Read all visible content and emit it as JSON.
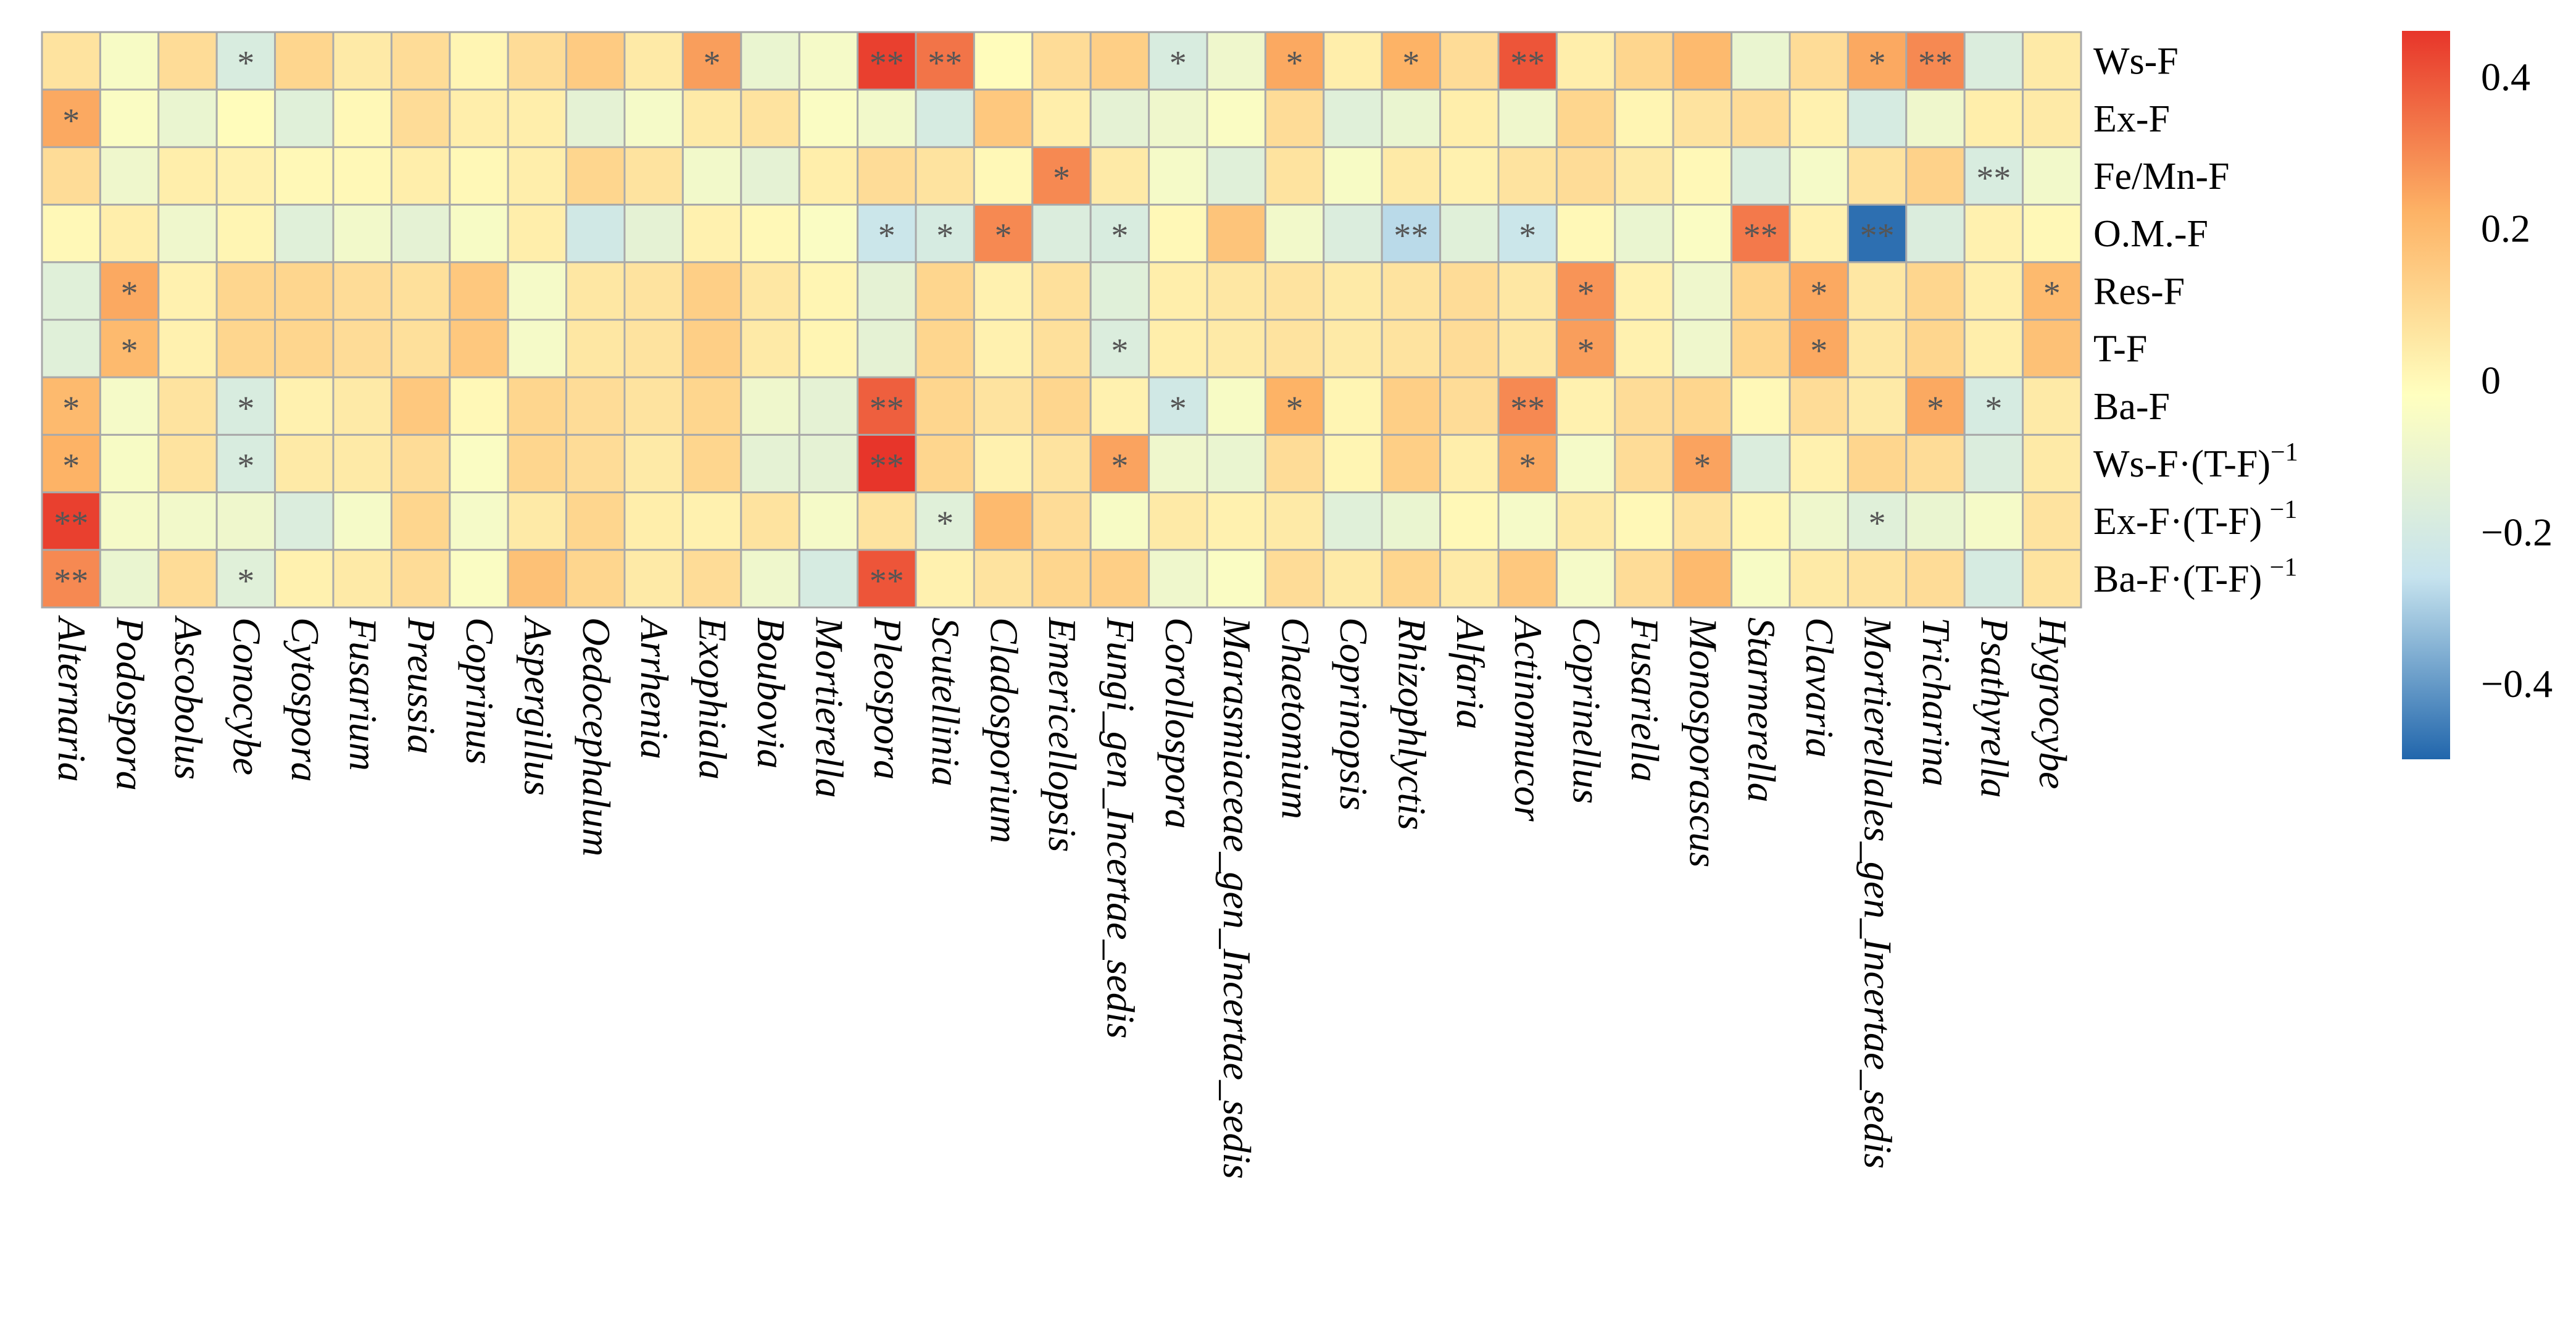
{
  "chart_data": {
    "type": "heatmap",
    "title": "",
    "rows": [
      {
        "label": "Ws-F",
        "sup": ""
      },
      {
        "label": "Ex-F",
        "sup": ""
      },
      {
        "label": "Fe/Mn-F",
        "sup": ""
      },
      {
        "label": "O.M.-F",
        "sup": ""
      },
      {
        "label": "Res-F",
        "sup": ""
      },
      {
        "label": "T-F",
        "sup": ""
      },
      {
        "label": "Ba-F",
        "sup": ""
      },
      {
        "label": "Ws-F·(T-F)",
        "sup": "−1"
      },
      {
        "label": "Ex-F·(T-F) ",
        "sup": "−1"
      },
      {
        "label": "Ba-F·(T-F) ",
        "sup": "−1"
      }
    ],
    "columns": [
      "Alternaria",
      "Podospora",
      "Ascobolus",
      "Conocybe",
      "Cytospora",
      "Fusarium",
      "Preussia",
      "Coprinus",
      "Aspergillus",
      "Oedocephalum",
      "Arrhenia",
      "Exophiala",
      "Boubovia",
      "Mortierella",
      "Pleospora",
      "Scutellinia",
      "Cladosporium",
      "Emericellopsis",
      "Fungi_gen_Incertae_sedis",
      "Corollospora",
      "Marasmiaceae_gen_Incertae_sedis",
      "Chaetomium",
      "Coprinopsis",
      "Rhizophlyctis",
      "Alfaria",
      "Actinomucor",
      "Coprinellus",
      "Fusariella",
      "Monosporascus",
      "Starmerella",
      "Clavaria",
      "Mortierellales_gen_Incertae_sedis",
      "Tricharina",
      "Psathyrella",
      "Hygrocybe"
    ],
    "values": [
      [
        0.08,
        -0.03,
        0.1,
        -0.15,
        0.12,
        0.06,
        0.1,
        0.03,
        0.1,
        0.15,
        0.06,
        0.26,
        -0.08,
        -0.04,
        0.44,
        0.34,
        0.01,
        0.1,
        0.14,
        -0.15,
        -0.06,
        0.24,
        0.05,
        0.22,
        0.1,
        0.4,
        0.05,
        0.12,
        0.2,
        -0.08,
        0.1,
        0.24,
        0.3,
        -0.14,
        0.06
      ],
      [
        0.24,
        -0.02,
        -0.08,
        0.01,
        -0.12,
        0.02,
        0.1,
        0.05,
        0.05,
        -0.1,
        -0.04,
        0.06,
        0.08,
        -0.02,
        -0.05,
        -0.16,
        0.16,
        0.05,
        -0.1,
        -0.06,
        -0.02,
        0.1,
        -0.12,
        -0.08,
        0.05,
        -0.06,
        0.12,
        0.03,
        0.08,
        0.1,
        0.04,
        -0.16,
        -0.06,
        0.05,
        0.06
      ],
      [
        0.1,
        -0.06,
        0.05,
        0.04,
        0.02,
        0.02,
        0.05,
        0.02,
        0.05,
        0.12,
        0.08,
        -0.05,
        -0.1,
        0.05,
        0.1,
        0.08,
        0.02,
        0.3,
        0.06,
        -0.04,
        -0.12,
        0.08,
        -0.03,
        0.06,
        0.04,
        0.08,
        0.1,
        0.06,
        0.02,
        -0.14,
        -0.04,
        0.08,
        0.13,
        -0.15,
        -0.05
      ],
      [
        0.02,
        0.05,
        -0.06,
        0.03,
        -0.12,
        -0.05,
        -0.1,
        -0.03,
        0.05,
        -0.18,
        -0.1,
        0.04,
        0.02,
        -0.02,
        -0.2,
        -0.16,
        0.3,
        -0.14,
        -0.15,
        0.02,
        0.17,
        -0.05,
        -0.14,
        -0.24,
        -0.12,
        -0.2,
        0.02,
        -0.08,
        -0.02,
        0.33,
        0.04,
        -0.48,
        -0.14,
        0.04,
        0.02
      ],
      [
        -0.12,
        0.24,
        0.04,
        0.12,
        0.12,
        0.1,
        0.09,
        0.16,
        -0.04,
        0.07,
        0.08,
        0.14,
        0.07,
        0.03,
        -0.1,
        0.12,
        0.04,
        0.09,
        -0.12,
        0.05,
        0.07,
        0.08,
        0.06,
        0.08,
        0.1,
        0.07,
        0.28,
        0.04,
        -0.06,
        0.12,
        0.24,
        0.07,
        0.12,
        0.05,
        0.2
      ],
      [
        -0.12,
        0.2,
        0.04,
        0.12,
        0.12,
        0.1,
        0.09,
        0.16,
        -0.04,
        0.07,
        0.08,
        0.14,
        0.06,
        0.03,
        -0.1,
        0.12,
        0.04,
        0.09,
        -0.14,
        0.05,
        0.06,
        0.08,
        0.06,
        0.08,
        0.1,
        0.07,
        0.26,
        0.04,
        -0.06,
        0.12,
        0.24,
        0.07,
        0.12,
        0.05,
        0.18
      ],
      [
        0.2,
        -0.04,
        0.08,
        -0.15,
        0.04,
        0.06,
        0.16,
        0.02,
        0.12,
        0.1,
        0.08,
        0.12,
        -0.06,
        -0.1,
        0.38,
        0.12,
        0.08,
        0.12,
        0.04,
        -0.18,
        -0.03,
        0.22,
        0.03,
        0.14,
        0.1,
        0.3,
        0.04,
        0.1,
        0.12,
        0.02,
        0.1,
        0.06,
        0.24,
        -0.16,
        0.06
      ],
      [
        0.22,
        -0.03,
        0.08,
        -0.15,
        0.06,
        0.06,
        0.1,
        -0.02,
        0.12,
        0.1,
        0.06,
        0.12,
        -0.1,
        -0.1,
        0.46,
        0.12,
        0.04,
        0.08,
        0.25,
        -0.06,
        -0.08,
        0.1,
        0.03,
        0.14,
        0.05,
        0.24,
        -0.04,
        0.1,
        0.25,
        -0.14,
        0.04,
        0.12,
        0.1,
        -0.14,
        0.06
      ],
      [
        0.44,
        -0.04,
        -0.05,
        -0.06,
        -0.14,
        -0.04,
        0.12,
        -0.04,
        0.06,
        0.12,
        0.05,
        0.04,
        0.08,
        -0.04,
        0.08,
        -0.12,
        0.2,
        0.1,
        -0.03,
        0.06,
        0.04,
        0.06,
        -0.12,
        -0.08,
        0.02,
        -0.04,
        0.06,
        0.02,
        0.08,
        0.03,
        -0.06,
        -0.12,
        -0.08,
        -0.04,
        0.08
      ],
      [
        0.3,
        -0.08,
        0.1,
        -0.12,
        0.04,
        0.06,
        0.1,
        -0.02,
        0.18,
        0.12,
        0.06,
        0.1,
        -0.06,
        -0.16,
        0.4,
        0.04,
        0.08,
        0.12,
        0.14,
        -0.06,
        -0.02,
        0.1,
        0.06,
        0.12,
        0.06,
        0.16,
        -0.04,
        0.1,
        0.2,
        -0.03,
        0.06,
        0.08,
        0.1,
        -0.16,
        0.08
      ]
    ],
    "significance": [
      [
        "",
        "",
        "",
        "*",
        "",
        "",
        "",
        "",
        "",
        "",
        "",
        "*",
        "",
        "",
        "**",
        "**",
        "",
        "",
        "",
        "*",
        "",
        "*",
        "",
        "*",
        "",
        "**",
        "",
        "",
        "",
        "",
        "",
        "*",
        "**",
        "",
        ""
      ],
      [
        "*",
        "",
        "",
        "",
        "",
        "",
        "",
        "",
        "",
        "",
        "",
        "",
        "",
        "",
        "",
        "",
        "",
        "",
        "",
        "",
        "",
        "",
        "",
        "",
        "",
        "",
        "",
        "",
        "",
        "",
        "",
        "",
        "",
        "",
        ""
      ],
      [
        "",
        "",
        "",
        "",
        "",
        "",
        "",
        "",
        "",
        "",
        "",
        "",
        "",
        "",
        "",
        "",
        "",
        "*",
        "",
        "",
        "",
        "",
        "",
        "",
        "",
        "",
        "",
        "",
        "",
        "",
        "",
        "",
        "",
        "**",
        ""
      ],
      [
        "",
        "",
        "",
        "",
        "",
        "",
        "",
        "",
        "",
        "",
        "",
        "",
        "",
        "",
        "*",
        "*",
        "*",
        "",
        "*",
        "",
        "",
        "",
        "",
        "**",
        "",
        "*",
        "",
        "",
        "",
        "**",
        "",
        "**",
        "",
        "",
        ""
      ],
      [
        "",
        "*",
        "",
        "",
        "",
        "",
        "",
        "",
        "",
        "",
        "",
        "",
        "",
        "",
        "",
        "",
        "",
        "",
        "",
        "",
        "",
        "",
        "",
        "",
        "",
        "",
        "*",
        "",
        "",
        "",
        "*",
        "",
        "",
        "",
        "*"
      ],
      [
        "",
        "*",
        "",
        "",
        "",
        "",
        "",
        "",
        "",
        "",
        "",
        "",
        "",
        "",
        "",
        "",
        "",
        "",
        "*",
        "",
        "",
        "",
        "",
        "",
        "",
        "",
        "*",
        "",
        "",
        "",
        "*",
        "",
        "",
        "",
        ""
      ],
      [
        "*",
        "",
        "",
        "*",
        "",
        "",
        "",
        "",
        "",
        "",
        "",
        "",
        "",
        "",
        "**",
        "",
        "",
        "",
        "",
        "*",
        "",
        "*",
        "",
        "",
        "",
        "**",
        "",
        "",
        "",
        "",
        "",
        "",
        "*",
        "*",
        ""
      ],
      [
        "*",
        "",
        "",
        "*",
        "",
        "",
        "",
        "",
        "",
        "",
        "",
        "",
        "",
        "",
        "**",
        "",
        "",
        "",
        "*",
        "",
        "",
        "",
        "",
        "",
        "",
        "*",
        "",
        "",
        "*",
        "",
        "",
        "",
        "",
        "",
        ""
      ],
      [
        "**",
        "",
        "",
        "",
        "",
        "",
        "",
        "",
        "",
        "",
        "",
        "",
        "",
        "",
        "",
        "*",
        "",
        "",
        "",
        "",
        "",
        "",
        "",
        "",
        "",
        "",
        "",
        "",
        "",
        "",
        "",
        "*",
        "",
        "",
        ""
      ],
      [
        "**",
        "",
        "",
        "*",
        "",
        "",
        "",
        "",
        "",
        "",
        "",
        "",
        "",
        "",
        "**",
        "",
        "",
        "",
        "",
        "",
        "",
        "",
        "",
        "",
        "",
        "",
        "",
        "",
        "",
        "",
        "",
        "",
        "",
        "",
        ""
      ]
    ],
    "colorbar": {
      "range": [
        -0.5,
        0.46
      ],
      "ticks": [
        0.4,
        0.2,
        0,
        -0.2,
        -0.4
      ],
      "tick_labels": [
        "0.4",
        "0.2",
        "0",
        "−0.2",
        "−0.4"
      ]
    },
    "colors": {
      "low": "#2166ac",
      "mid_low": "#c6e3ee",
      "mid": "#ffffbf",
      "mid_high": "#fdb366",
      "high": "#e7352a",
      "grid": "#a9a9a9",
      "star": "#555555"
    }
  }
}
